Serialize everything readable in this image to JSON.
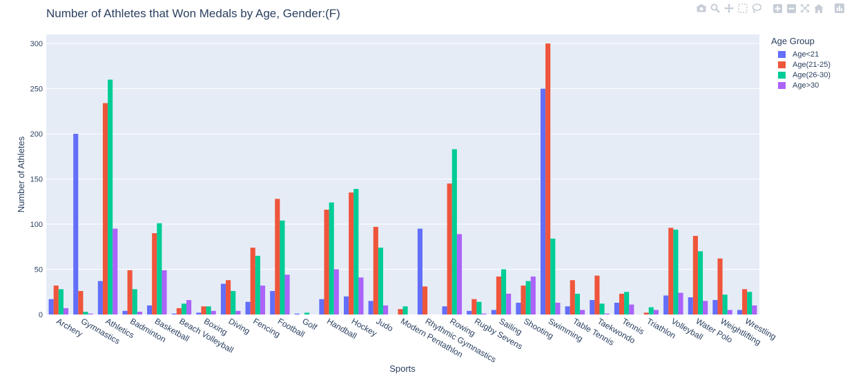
{
  "title": "Number of Athletes that Won Medals by Age, Gender:(F)",
  "modebar": {
    "icons": [
      "camera-icon",
      "zoom-icon",
      "pan-icon",
      "box-select-icon",
      "lasso-select-icon",
      "zoom-in-icon",
      "zoom-out-icon",
      "autoscale-icon",
      "reset-axes-icon",
      "plotly-logo-icon"
    ]
  },
  "legend": {
    "title": "Age Group",
    "position": "top-right"
  },
  "chart_data": {
    "type": "bar",
    "title": "Number of Athletes that Won Medals by Age, Gender:(F)",
    "xlabel": "Sports",
    "ylabel": "Number of Athletes",
    "ylim": [
      0,
      310
    ],
    "yticks": [
      0,
      50,
      100,
      150,
      200,
      250,
      300
    ],
    "grid": true,
    "categories": [
      "Archery",
      "Gymnastics",
      "Athletics",
      "Badminton",
      "Basketball",
      "Beach Volleyball",
      "Boxing",
      "Diving",
      "Fencing",
      "Football",
      "Golf",
      "Handball",
      "Hockey",
      "Judo",
      "Modern Pentathlon",
      "Rhythmic Gymnastics",
      "Rowing",
      "Rugby Sevens",
      "Sailing",
      "Shooting",
      "Swimming",
      "Table Tennis",
      "Taekwondo",
      "Tennis",
      "Triathlon",
      "Volleyball",
      "Water Polo",
      "Weightlifting",
      "Wrestling"
    ],
    "series": [
      {
        "name": "Age<21",
        "color": "#636efa",
        "values": [
          17,
          200,
          37,
          4,
          10,
          1,
          2,
          34,
          14,
          26,
          1,
          17,
          20,
          15,
          0,
          95,
          9,
          4,
          5,
          13,
          250,
          9,
          16,
          13,
          0,
          21,
          19,
          16,
          5
        ]
      },
      {
        "name": "Age(21-25)",
        "color": "#ef553b",
        "values": [
          32,
          26,
          234,
          49,
          90,
          7,
          9,
          38,
          74,
          128,
          0,
          116,
          135,
          97,
          6,
          31,
          145,
          17,
          42,
          32,
          300,
          38,
          43,
          23,
          2,
          96,
          87,
          62,
          28
        ]
      },
      {
        "name": "Age(26-30)",
        "color": "#00cc96",
        "values": [
          28,
          3,
          260,
          28,
          101,
          12,
          9,
          26,
          65,
          104,
          2,
          124,
          139,
          74,
          9,
          0,
          183,
          14,
          50,
          37,
          84,
          23,
          12,
          25,
          8,
          94,
          70,
          22,
          25
        ]
      },
      {
        "name": "Age>30",
        "color": "#ab63fa",
        "values": [
          7,
          1,
          95,
          3,
          49,
          16,
          4,
          4,
          32,
          44,
          0,
          50,
          41,
          10,
          0,
          0,
          89,
          1,
          23,
          42,
          13,
          5,
          1,
          11,
          5,
          24,
          15,
          5,
          10
        ]
      }
    ]
  }
}
